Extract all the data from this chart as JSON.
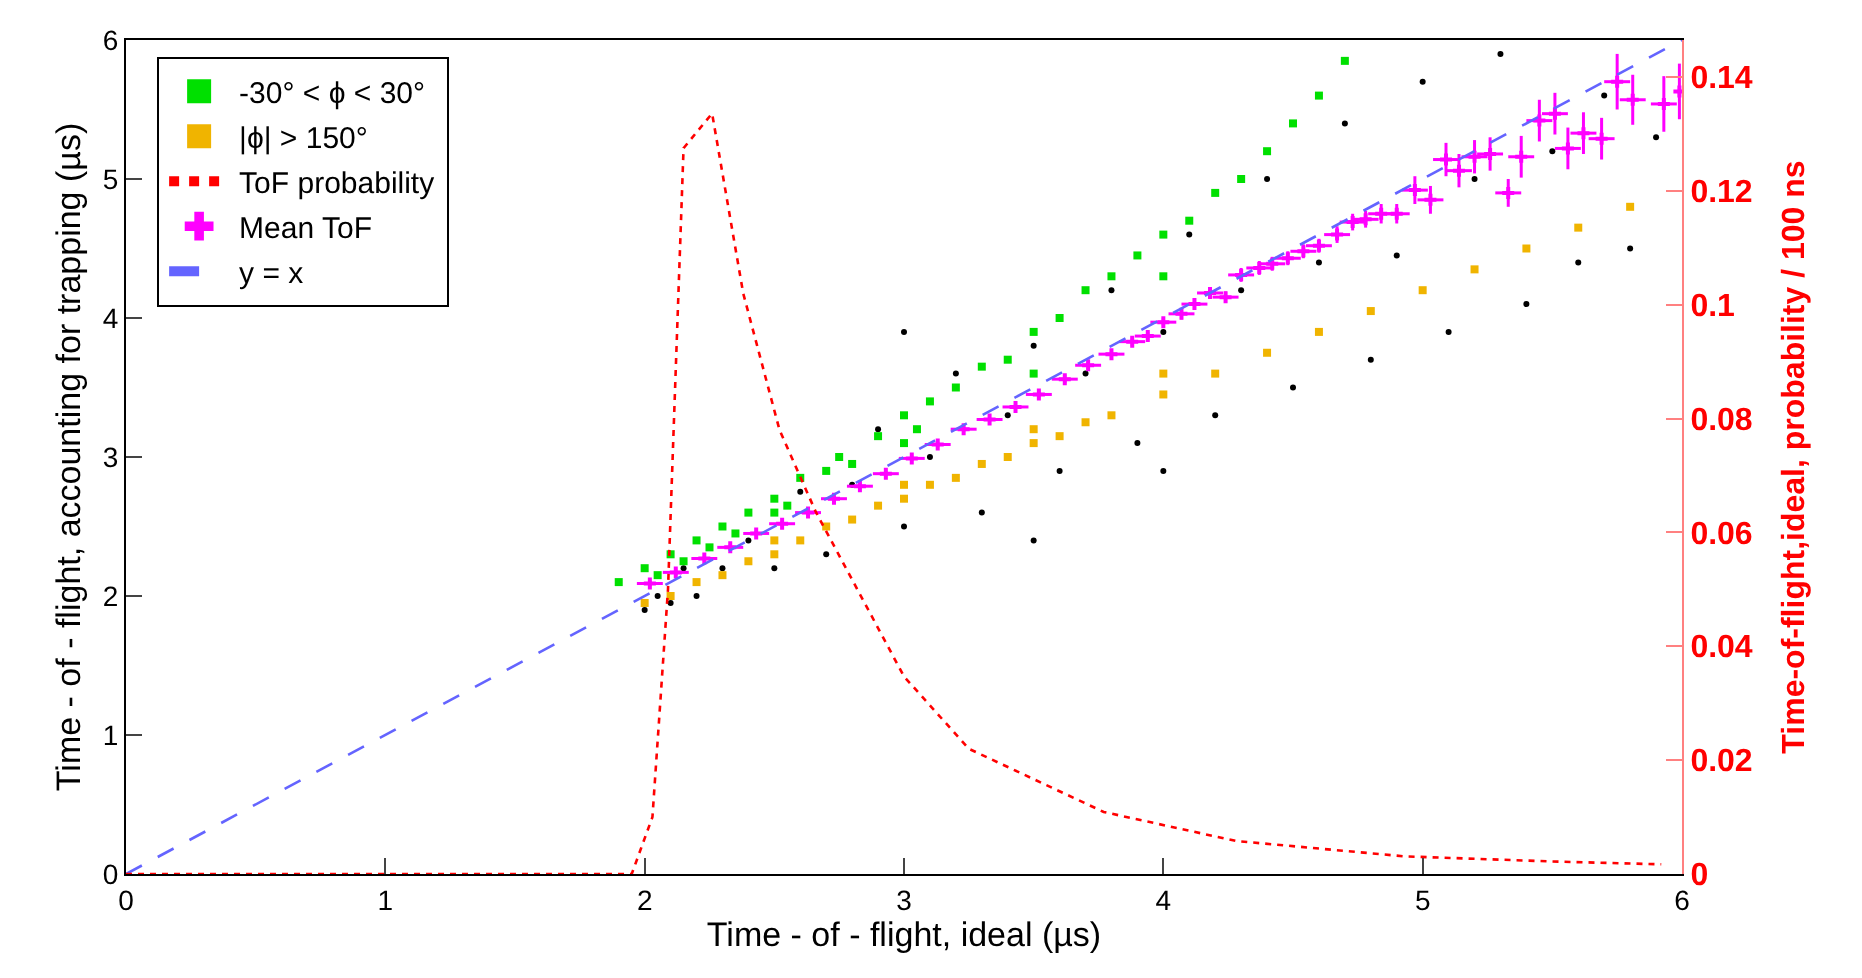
{
  "chart_data": {
    "type": "scatter",
    "xlabel": "Time - of - flight, ideal (µs)",
    "ylabel": "Time - of - flight, accounting for trapping (µs)",
    "y2label": "Time-of-flight,ideal, probability / 100 ns",
    "xlim": [
      0,
      6
    ],
    "xticks": [
      0,
      1,
      2,
      3,
      4,
      5,
      6
    ],
    "ylim": [
      0,
      6
    ],
    "yticks": [
      0,
      1,
      2,
      3,
      4,
      5,
      6
    ],
    "y2lim": [
      0,
      0.1465
    ],
    "y2ticks": [
      0,
      0.02,
      0.04,
      0.06,
      0.08,
      0.1,
      0.12,
      0.14
    ],
    "legend": "top left",
    "series": [
      {
        "color": "#000000",
        "marker": "circle",
        "x": [
          2.0,
          2.05,
          2.1,
          2.2,
          2.15,
          2.3,
          2.4,
          2.5,
          2.6,
          2.7,
          2.8,
          2.9,
          3.0,
          3.1,
          3.2,
          3.3,
          3.4,
          3.5,
          3.6,
          3.7,
          3.8,
          3.9,
          4.0,
          4.1,
          4.2,
          4.3,
          4.4,
          4.5,
          4.6,
          4.7,
          4.8,
          4.9,
          5.0,
          5.1,
          5.2,
          5.3,
          5.4,
          5.5,
          5.6,
          5.7,
          5.8,
          5.9,
          3.0,
          3.5,
          4.0
        ],
        "values": [
          1.9,
          2.0,
          1.95,
          2.0,
          2.2,
          2.2,
          2.4,
          2.2,
          2.75,
          2.3,
          2.8,
          3.2,
          2.5,
          3.0,
          3.6,
          2.6,
          3.3,
          3.8,
          2.9,
          3.6,
          4.2,
          3.1,
          3.9,
          4.6,
          3.3,
          4.2,
          5.0,
          3.5,
          4.4,
          5.4,
          3.7,
          4.45,
          5.7,
          3.9,
          5.0,
          5.9,
          4.1,
          5.2,
          4.4,
          5.6,
          4.5,
          5.3,
          3.9,
          2.4,
          2.9
        ]
      },
      {
        "name": "-30° < ϕ < 30°",
        "color": "#00e000",
        "marker": "square",
        "x": [
          1.9,
          2.0,
          2.05,
          2.1,
          2.15,
          2.2,
          2.25,
          2.3,
          2.35,
          2.4,
          2.5,
          2.55,
          2.6,
          2.7,
          2.75,
          2.8,
          2.9,
          3.0,
          3.05,
          3.1,
          3.2,
          3.3,
          3.4,
          3.5,
          3.6,
          3.7,
          3.8,
          3.9,
          4.0,
          4.1,
          4.2,
          4.3,
          4.4,
          4.5,
          4.6,
          4.7,
          3.5,
          4.0,
          2.5,
          3.0
        ],
        "values": [
          2.1,
          2.2,
          2.15,
          2.3,
          2.25,
          2.4,
          2.35,
          2.5,
          2.45,
          2.6,
          2.7,
          2.65,
          2.85,
          2.9,
          3.0,
          2.95,
          3.15,
          3.3,
          3.2,
          3.4,
          3.5,
          3.65,
          3.7,
          3.9,
          4.0,
          4.2,
          4.3,
          4.45,
          4.6,
          4.7,
          4.9,
          5.0,
          5.2,
          5.4,
          5.6,
          5.85,
          3.6,
          4.3,
          2.6,
          3.1
        ]
      },
      {
        "name": "|ϕ| > 150°",
        "color": "#f0b400",
        "marker": "square",
        "x": [
          2.0,
          2.1,
          2.2,
          2.3,
          2.4,
          2.5,
          2.6,
          2.7,
          2.8,
          2.9,
          3.0,
          3.1,
          3.2,
          3.3,
          3.4,
          3.5,
          3.6,
          3.7,
          3.8,
          4.0,
          4.2,
          4.4,
          4.6,
          4.8,
          5.0,
          5.2,
          5.4,
          5.6,
          5.8,
          2.5,
          3.0,
          3.5,
          4.0
        ],
        "values": [
          1.95,
          2.0,
          2.1,
          2.15,
          2.25,
          2.3,
          2.4,
          2.5,
          2.55,
          2.65,
          2.7,
          2.8,
          2.85,
          2.95,
          3.0,
          3.1,
          3.15,
          3.25,
          3.3,
          3.45,
          3.6,
          3.75,
          3.9,
          4.05,
          4.2,
          4.35,
          4.5,
          4.65,
          4.8,
          2.4,
          2.8,
          3.2,
          3.6
        ]
      },
      {
        "type": "line",
        "name": "ToF probability",
        "color": "#ff0000",
        "axis": "y2",
        "line_style": "dotted",
        "marker": "none",
        "x": [
          0,
          1.95,
          2.03,
          2.09,
          2.15,
          2.26,
          2.38,
          2.52,
          2.66,
          3.0,
          3.25,
          3.77,
          4.28,
          4.93,
          5.5,
          5.92
        ],
        "values": [
          0,
          0,
          0.01,
          0.05,
          0.1275,
          0.1336,
          0.102,
          0.078,
          0.0636,
          0.0347,
          0.022,
          0.0109,
          0.0058,
          0.0031,
          0.0022,
          0.0017
        ]
      },
      {
        "name": "Mean ToF",
        "color": "#ff00ff",
        "marker": "cross",
        "x": [
          2.02,
          2.12,
          2.23,
          2.33,
          2.43,
          2.53,
          2.63,
          2.73,
          2.83,
          2.93,
          3.03,
          3.13,
          3.23,
          3.33,
          3.43,
          3.52,
          3.62,
          3.71,
          3.8,
          3.88,
          3.94,
          4.0,
          4.07,
          4.12,
          4.18,
          4.24,
          4.3,
          4.37,
          4.42,
          4.48,
          4.54,
          4.6,
          4.67,
          4.73,
          4.78,
          4.84,
          4.9,
          4.97,
          5.03,
          5.09,
          5.14,
          5.2,
          5.26,
          5.33,
          5.38,
          5.45,
          5.51,
          5.56,
          5.62,
          5.69,
          5.75,
          5.81,
          5.93,
          5.99
        ],
        "values": [
          2.09,
          2.17,
          2.27,
          2.35,
          2.45,
          2.52,
          2.6,
          2.7,
          2.79,
          2.88,
          2.99,
          3.09,
          3.2,
          3.27,
          3.36,
          3.45,
          3.56,
          3.66,
          3.74,
          3.83,
          3.87,
          3.97,
          4.03,
          4.1,
          4.18,
          4.15,
          4.31,
          4.36,
          4.39,
          4.43,
          4.48,
          4.52,
          4.6,
          4.69,
          4.71,
          4.75,
          4.75,
          4.92,
          4.85,
          5.14,
          5.06,
          5.16,
          5.18,
          4.9,
          5.16,
          5.42,
          5.47,
          5.22,
          5.33,
          5.29,
          5.7,
          5.57,
          5.54,
          5.63
        ],
        "errors": [
          0.02,
          0.02,
          0.02,
          0.02,
          0.02,
          0.02,
          0.02,
          0.02,
          0.02,
          0.02,
          0.02,
          0.02,
          0.02,
          0.02,
          0.03,
          0.03,
          0.03,
          0.03,
          0.03,
          0.03,
          0.03,
          0.03,
          0.04,
          0.04,
          0.04,
          0.04,
          0.05,
          0.05,
          0.05,
          0.05,
          0.05,
          0.05,
          0.06,
          0.06,
          0.06,
          0.07,
          0.07,
          0.1,
          0.1,
          0.12,
          0.12,
          0.12,
          0.12,
          0.1,
          0.15,
          0.15,
          0.15,
          0.15,
          0.15,
          0.15,
          0.2,
          0.18,
          0.2,
          0.2
        ],
        "xerrors": [
          0.05,
          0.05,
          0.05,
          0.05,
          0.05,
          0.05,
          0.05,
          0.05,
          0.05,
          0.05,
          0.05,
          0.05,
          0.05,
          0.05,
          0.05,
          0.05,
          0.05,
          0.05,
          0.05,
          0.05,
          0.05,
          0.05,
          0.05,
          0.05,
          0.05,
          0.05,
          0.05,
          0.05,
          0.05,
          0.05,
          0.05,
          0.05,
          0.05,
          0.05,
          0.05,
          0.05,
          0.05,
          0.05,
          0.05,
          0.05,
          0.05,
          0.05,
          0.05,
          0.05,
          0.05,
          0.05,
          0.05,
          0.05,
          0.05,
          0.05,
          0.05,
          0.05,
          0.05,
          0.01
        ]
      },
      {
        "type": "line",
        "name": "y = x",
        "color": "#6464ff",
        "line_style": "dashed",
        "marker": "none",
        "x": [
          0,
          6
        ],
        "values": [
          0,
          6
        ]
      }
    ]
  }
}
